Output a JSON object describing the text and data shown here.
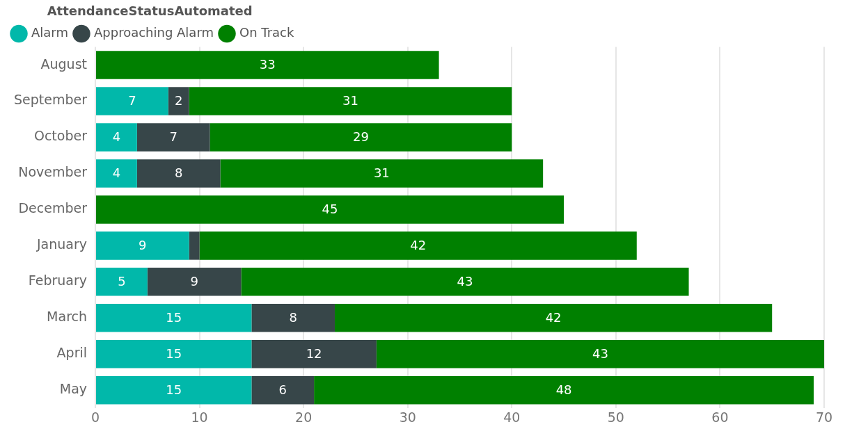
{
  "chart_data": {
    "type": "bar",
    "orientation": "horizontal",
    "stacked": true,
    "legend_title": "AttendanceStatusAutomated",
    "legend": "top left",
    "grid": "x",
    "categories": [
      "August",
      "September",
      "October",
      "November",
      "December",
      "January",
      "February",
      "March",
      "April",
      "May"
    ],
    "series": [
      {
        "name": "Alarm",
        "color": "#01b8aa",
        "values": [
          null,
          7,
          4,
          4,
          null,
          9,
          5,
          15,
          15,
          15
        ],
        "value_labels": [
          null,
          "7",
          "4",
          "4",
          null,
          "9",
          "5",
          "15",
          "15",
          "15"
        ]
      },
      {
        "name": "Approaching Alarm",
        "color": "#374649",
        "values": [
          null,
          2,
          7,
          8,
          null,
          1,
          9,
          8,
          12,
          6
        ],
        "value_labels": [
          null,
          "2",
          "7",
          "8",
          null,
          null,
          "9",
          "8",
          "12",
          "6"
        ]
      },
      {
        "name": "On Track",
        "color": "#008000",
        "values": [
          33,
          31,
          29,
          31,
          45,
          42,
          43,
          42,
          43,
          48
        ],
        "value_labels": [
          "33",
          "31",
          "29",
          "31",
          "45",
          "42",
          "43",
          "42",
          "43",
          "48"
        ]
      }
    ],
    "xlim": [
      0,
      70
    ],
    "xticks": [
      0,
      10,
      20,
      30,
      40,
      50,
      60,
      70
    ]
  }
}
